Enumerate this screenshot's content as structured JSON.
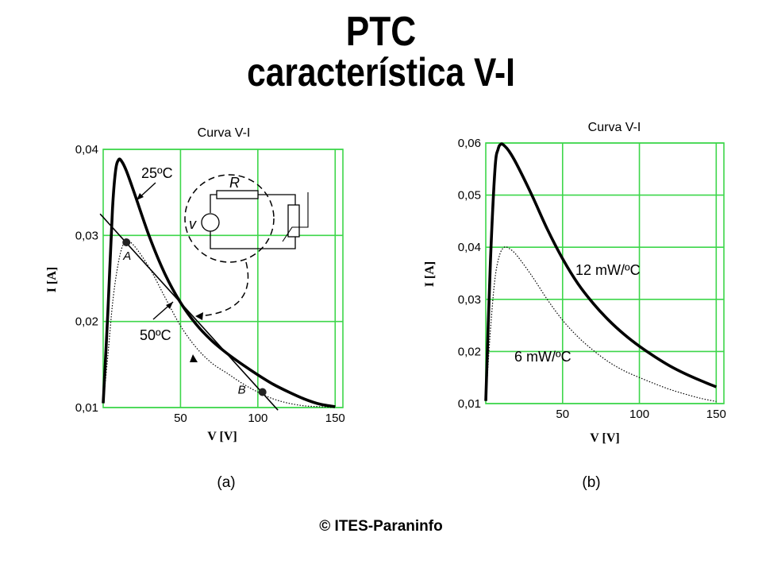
{
  "title": "PTC",
  "subtitle": "característica V-I",
  "copyright": "© ITES-Paraninfo",
  "colors": {
    "grid": "#3dd64a",
    "curve": "#000000",
    "background": "#ffffff"
  },
  "chart_data": [
    {
      "type": "line",
      "panel_label": "(a)",
      "title": "Curva V-I",
      "xlabel": "V   [V]",
      "ylabel": "I   [A]",
      "xlim": [
        0,
        155
      ],
      "ylim": [
        0.01,
        0.04
      ],
      "grid": true,
      "x_ticks": [
        "50",
        "100",
        "150"
      ],
      "y_ticks": [
        "0,01",
        "0,02",
        "0,03",
        "0,04"
      ],
      "series": [
        {
          "name": "25ºC",
          "style": "solid-thick",
          "x": [
            0,
            3,
            6,
            8,
            10,
            12,
            15,
            20,
            30,
            40,
            50,
            60,
            70,
            80,
            90,
            100,
            110,
            120,
            130,
            140,
            150
          ],
          "y": [
            0.0105,
            0.021,
            0.033,
            0.0375,
            0.0388,
            0.0386,
            0.0375,
            0.035,
            0.0298,
            0.0255,
            0.0222,
            0.0197,
            0.0178,
            0.0163,
            0.015,
            0.0138,
            0.0127,
            0.0118,
            0.011,
            0.0104,
            0.0101
          ]
        },
        {
          "name": "50ºC",
          "style": "dotted",
          "x": [
            0,
            3,
            6,
            9,
            12,
            15,
            20,
            30,
            40,
            50,
            60,
            70,
            80,
            90,
            100,
            110,
            120,
            130,
            140,
            150
          ],
          "y": [
            0.0105,
            0.016,
            0.022,
            0.026,
            0.0285,
            0.0293,
            0.0288,
            0.0262,
            0.0228,
            0.0195,
            0.017,
            0.0152,
            0.014,
            0.0128,
            0.0118,
            0.011,
            0.0105,
            0.0102,
            0.0101,
            0.01
          ]
        },
        {
          "name": "load line",
          "style": "solid-thin",
          "x": [
            -2,
            113
          ],
          "y": [
            0.0325,
            0.0097
          ]
        }
      ],
      "points": [
        {
          "label": "A",
          "x": 15,
          "y": 0.0292
        },
        {
          "label": "B",
          "x": 103,
          "y": 0.0118
        }
      ],
      "inset_labels": {
        "resistor": "R",
        "source": "v"
      }
    },
    {
      "type": "line",
      "panel_label": "(b)",
      "title": "Curva V-I",
      "xlabel": "V   [V]",
      "ylabel": "I   [A]",
      "xlim": [
        0,
        155
      ],
      "ylim": [
        0.01,
        0.06
      ],
      "grid": true,
      "x_ticks": [
        "50",
        "100",
        "150"
      ],
      "y_ticks": [
        "0,01",
        "0,02",
        "0,03",
        "0,04",
        "0,05",
        "0,06"
      ],
      "series": [
        {
          "name": "12 mW/ºC",
          "style": "solid-thick",
          "x": [
            0,
            3,
            6,
            8,
            10,
            12,
            15,
            20,
            30,
            40,
            50,
            60,
            70,
            80,
            90,
            100,
            110,
            120,
            130,
            140,
            150
          ],
          "y": [
            0.0105,
            0.037,
            0.055,
            0.0588,
            0.0598,
            0.0595,
            0.0585,
            0.056,
            0.05,
            0.0435,
            0.0378,
            0.033,
            0.0292,
            0.026,
            0.0233,
            0.021,
            0.019,
            0.0172,
            0.0157,
            0.0144,
            0.0132
          ]
        },
        {
          "name": "6 mW/ºC",
          "style": "dotted",
          "x": [
            0,
            3,
            6,
            9,
            12,
            15,
            20,
            30,
            40,
            50,
            60,
            70,
            80,
            90,
            100,
            110,
            120,
            130,
            140,
            150
          ],
          "y": [
            0.0105,
            0.024,
            0.034,
            0.0385,
            0.04,
            0.0398,
            0.0385,
            0.0345,
            0.03,
            0.026,
            0.0228,
            0.0202,
            0.018,
            0.0163,
            0.015,
            0.0138,
            0.0127,
            0.0118,
            0.011,
            0.0104
          ]
        }
      ]
    }
  ]
}
